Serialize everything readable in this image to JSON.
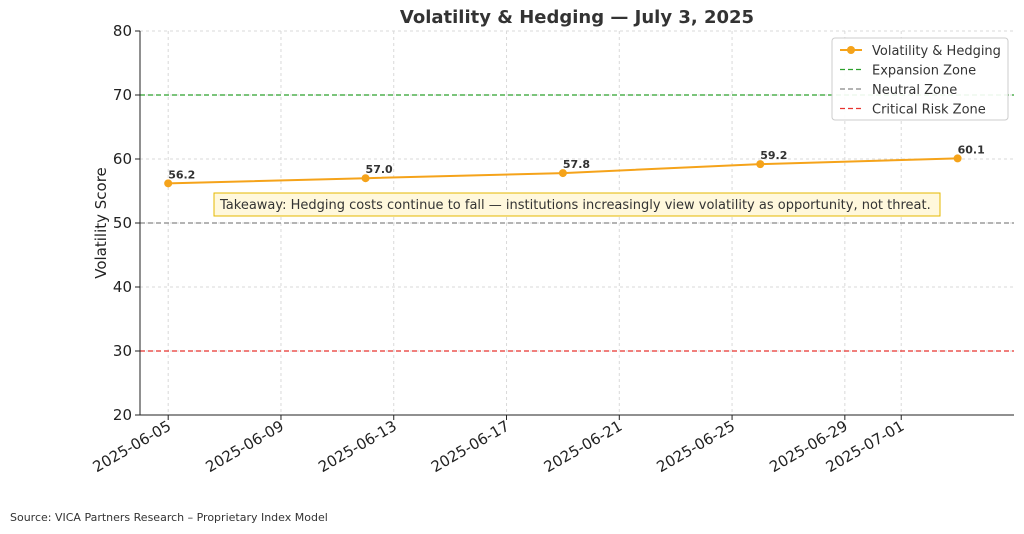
{
  "chart_data": {
    "type": "line",
    "title": "Volatility & Hedging — July 3, 2025",
    "xlabel": "",
    "ylabel": "Volatility Score",
    "ylim": [
      20,
      80
    ],
    "y_ticks": [
      20,
      30,
      40,
      50,
      60,
      70,
      80
    ],
    "x_ticks": [
      "2025-06-05",
      "2025-06-09",
      "2025-06-13",
      "2025-06-17",
      "2025-06-21",
      "2025-06-25",
      "2025-06-29",
      "2025-07-01"
    ],
    "xlim": [
      "2025-06-04",
      "2025-07-05"
    ],
    "grid": true,
    "legend_position": "top-right",
    "series": [
      {
        "name": "Volatility & Hedging",
        "color": "#f5a31a",
        "x": [
          "2025-06-05",
          "2025-06-12",
          "2025-06-19",
          "2025-06-26",
          "2025-07-03"
        ],
        "values": [
          56.2,
          57.0,
          57.8,
          59.2,
          60.1
        ],
        "labels": [
          "56.2",
          "57.0",
          "57.8",
          "59.2",
          "60.1"
        ]
      }
    ],
    "reference_lines": [
      {
        "name": "Expansion Zone",
        "value": 70,
        "color": "#2ca02c"
      },
      {
        "name": "Neutral Zone",
        "value": 50,
        "color": "#888888"
      },
      {
        "name": "Critical Risk Zone",
        "value": 30,
        "color": "#e8332f"
      }
    ],
    "annotation": "Takeaway: Hedging costs continue to fall — institutions increasingly view volatility as opportunity, not threat."
  },
  "source_note": "Source: VICA Partners Research – Proprietary Index Model"
}
